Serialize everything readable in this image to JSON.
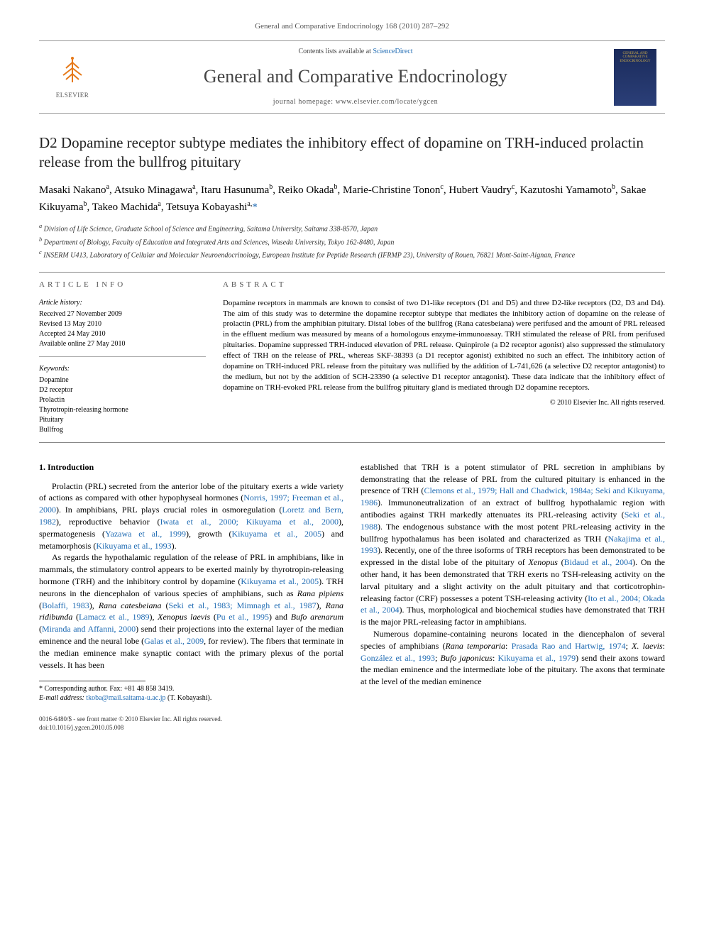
{
  "header": {
    "citation": "General and Comparative Endocrinology 168 (2010) 287–292",
    "contents_prefix": "Contents lists available at ",
    "contents_link": "ScienceDirect",
    "journal_name": "General and Comparative Endocrinology",
    "homepage_prefix": "journal homepage: ",
    "homepage_url": "www.elsevier.com/locate/ygcen",
    "publisher_label": "ELSEVIER",
    "cover_line1": "GENERAL AND COMPARATIVE",
    "cover_line2": "ENDOCRINOLOGY"
  },
  "article": {
    "title": "D2 Dopamine receptor subtype mediates the inhibitory effect of dopamine on TRH-induced prolactin release from the bullfrog pituitary",
    "authors_html": "Masaki Nakano<sup>a</sup>, Atsuko Minagawa<sup>a</sup>, Itaru Hasunuma<sup>b</sup>, Reiko Okada<sup>b</sup>, Marie-Christine Tonon<sup>c</sup>, Hubert Vaudry<sup>c</sup>, Kazutoshi Yamamoto<sup>b</sup>, Sakae Kikuyama<sup>b</sup>, Takeo Machida<sup>a</sup>, Tetsuya Kobayashi<sup>a,</sup>",
    "corresponding_marker": "*",
    "affiliations": [
      "a Division of Life Science, Graduate School of Science and Engineering, Saitama University, Saitama 338-8570, Japan",
      "b Department of Biology, Faculty of Education and Integrated Arts and Sciences, Waseda University, Tokyo 162-8480, Japan",
      "c INSERM U413, Laboratory of Cellular and Molecular Neuroendocrinology, European Institute for Peptide Research (IFRMP 23), University of Rouen, 76821 Mont-Saint-Aignan, France"
    ]
  },
  "info": {
    "section_label": "ARTICLE INFO",
    "history_label": "Article history:",
    "history": [
      "Received 27 November 2009",
      "Revised 13 May 2010",
      "Accepted 24 May 2010",
      "Available online 27 May 2010"
    ],
    "keywords_label": "Keywords:",
    "keywords": [
      "Dopamine",
      "D2 receptor",
      "Prolactin",
      "Thyrotropin-releasing hormone",
      "Pituitary",
      "Bullfrog"
    ]
  },
  "abstract": {
    "section_label": "ABSTRACT",
    "text": "Dopamine receptors in mammals are known to consist of two D1-like receptors (D1 and D5) and three D2-like receptors (D2, D3 and D4). The aim of this study was to determine the dopamine receptor subtype that mediates the inhibitory action of dopamine on the release of prolactin (PRL) from the amphibian pituitary. Distal lobes of the bullfrog (Rana catesbeiana) were perifused and the amount of PRL released in the effluent medium was measured by means of a homologous enzyme-immunoassay. TRH stimulated the release of PRL from perifused pituitaries. Dopamine suppressed TRH-induced elevation of PRL release. Quinpirole (a D2 receptor agonist) also suppressed the stimulatory effect of TRH on the release of PRL, whereas SKF-38393 (a D1 receptor agonist) exhibited no such an effect. The inhibitory action of dopamine on TRH-induced PRL release from the pituitary was nullified by the addition of L-741,626 (a selective D2 receptor antagonist) to the medium, but not by the addition of SCH-23390 (a selective D1 receptor antagonist). These data indicate that the inhibitory effect of dopamine on TRH-evoked PRL release from the bullfrog pituitary gland is mediated through D2 dopamine receptors.",
    "copyright": "© 2010 Elsevier Inc. All rights reserved."
  },
  "body": {
    "intro_heading": "1. Introduction",
    "p1_pre": "Prolactin (PRL) secreted from the anterior lobe of the pituitary exerts a wide variety of actions as compared with other hypophyseal hormones (",
    "p1_r1": "Norris, 1997; Freeman et al., 2000",
    "p1_a": "). In amphibians, PRL plays crucial roles in osmoregulation (",
    "p1_r2": "Loretz and Bern, 1982",
    "p1_b": "), reproductive behavior (",
    "p1_r3": "Iwata et al., 2000; Kikuyama et al., 2000",
    "p1_c": "), spermatogenesis (",
    "p1_r4": "Yazawa et al., 1999",
    "p1_d": "), growth (",
    "p1_r5": "Kikuyama et al., 2005",
    "p1_e": ") and metamorphosis (",
    "p1_r6": "Kikuyama et al., 1993",
    "p1_f": ").",
    "p2_a": "As regards the hypothalamic regulation of the release of PRL in amphibians, like in mammals, the stimulatory control appears to be exerted mainly by thyrotropin-releasing hormone (TRH) and the inhibitory control by dopamine (",
    "p2_r1": "Kikuyama et al., 2005",
    "p2_b": "). TRH neurons in the diencephalon of various species of amphibians, such as ",
    "p2_sp1": "Rana pipiens",
    "p2_c": " (",
    "p2_r2": "Bolaffi, 1983",
    "p2_d": "), ",
    "p2_sp2": "Rana catesbeiana",
    "p2_e": " (",
    "p2_r3": "Seki et al., 1983; Mimnagh et al., 1987",
    "p2_f": "), ",
    "p2_sp3": "Rana ridibunda",
    "p2_g": " (",
    "p2_r4": "Lamacz et al., 1989",
    "p2_h": "), ",
    "p2_sp4": "Xenopus laevis",
    "p2_i": " (",
    "p2_r5": "Pu et al., 1995",
    "p2_j": ") and ",
    "p2_sp5": "Bufo arenarum",
    "p2_k": " (",
    "p2_r6": "Miranda and Affanni, 2000",
    "p2_l": ") send their projections into the external layer of the median eminence and the neural lobe (",
    "p2_r7": "Galas et al., 2009",
    "p2_m": ", for review). The fibers that terminate in the median eminence make synaptic contact with the primary plexus of the portal vessels. It has been",
    "p3_a": "established that TRH is a potent stimulator of PRL secretion in amphibians by demonstrating that the release of PRL from the cultured pituitary is enhanced in the presence of TRH (",
    "p3_r1": "Clemons et al., 1979; Hall and Chadwick, 1984a; Seki and Kikuyama, 1986",
    "p3_b": "). Immunoneutralization of an extract of bullfrog hypothalamic region with antibodies against TRH markedly attenuates its PRL-releasing activity (",
    "p3_r2": "Seki et al., 1988",
    "p3_c": "). The endogenous substance with the most potent PRL-releasing activity in the bullfrog hypothalamus has been isolated and characterized as TRH (",
    "p3_r3": "Nakajima et al., 1993",
    "p3_d": "). Recently, one of the three isoforms of TRH receptors has been demonstrated to be expressed in the distal lobe of the pituitary of ",
    "p3_sp1": "Xenopus",
    "p3_e": " (",
    "p3_r4": "Bidaud et al., 2004",
    "p3_f": "). On the other hand, it has been demonstrated that TRH exerts no TSH-releasing activity on the larval pituitary and a slight activity on the adult pituitary and that corticotrophin-releasing factor (CRF) possesses a potent TSH-releasing activity (",
    "p3_r5": "Ito et al., 2004; Okada et al., 2004",
    "p3_g": "). Thus, morphological and biochemical studies have demonstrated that TRH is the major PRL-releasing factor in amphibians.",
    "p4_a": "Numerous dopamine-containing neurons located in the diencephalon of several species of amphibians (",
    "p4_sp1": "Rana temporaria",
    "p4_b": ": ",
    "p4_r1": "Prasada Rao and Hartwig, 1974",
    "p4_c": "; ",
    "p4_sp2": "X. laevis",
    "p4_d": ": ",
    "p4_r2": "González et al., 1993",
    "p4_e": "; ",
    "p4_sp3": "Bufo japonicus",
    "p4_f": ": ",
    "p4_r3": "Kikuyama et al., 1979",
    "p4_g": ") send their axons toward the median eminence and the intermediate lobe of the pituitary. The axons that terminate at the level of the median eminence"
  },
  "footnote": {
    "corr_label": "* Corresponding author. Fax: +81 48 858 3419.",
    "email_label": "E-mail address:",
    "email": "tkoba@mail.saitama-u.ac.jp",
    "email_suffix": "(T. Kobayashi)."
  },
  "footer": {
    "line1": "0016-6480/$ - see front matter © 2010 Elsevier Inc. All rights reserved.",
    "line2": "doi:10.1016/j.ygcen.2010.05.008"
  },
  "colors": {
    "link": "#1f6bb3",
    "elsevier_orange": "#e67817",
    "rule": "#888888",
    "text": "#000000"
  }
}
